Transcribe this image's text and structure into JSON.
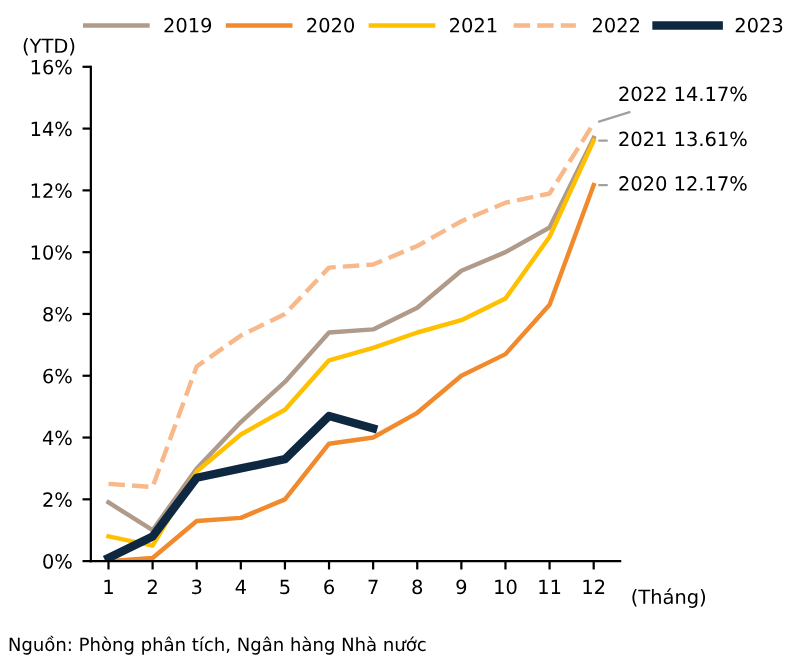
{
  "chart_data": {
    "type": "line",
    "ylabel": "(YTD)",
    "xlabel": "(Tháng)",
    "categories": [
      "1",
      "2",
      "3",
      "4",
      "5",
      "6",
      "7",
      "8",
      "9",
      "10",
      "11",
      "12"
    ],
    "series": [
      {
        "name": "2019",
        "color": "#b09a8a",
        "values": [
          1.9,
          1.0,
          3.0,
          4.5,
          5.8,
          7.4,
          7.5,
          8.2,
          9.4,
          10.0,
          10.8,
          13.7
        ]
      },
      {
        "name": "2020",
        "color": "#f08a2c",
        "values": [
          0.0,
          0.1,
          1.3,
          1.4,
          2.0,
          3.8,
          4.0,
          4.8,
          6.0,
          6.7,
          8.3,
          12.17
        ]
      },
      {
        "name": "2021",
        "color": "#ffc000",
        "values": [
          0.8,
          0.5,
          2.9,
          4.1,
          4.9,
          6.5,
          6.9,
          7.4,
          7.8,
          8.5,
          10.5,
          13.61
        ]
      },
      {
        "name": "2022",
        "color": "#f8b88a",
        "line_style": "dashed",
        "values": [
          2.5,
          2.4,
          6.3,
          7.3,
          8.0,
          9.5,
          9.6,
          10.2,
          11.0,
          11.6,
          11.9,
          14.17
        ]
      },
      {
        "name": "2023",
        "color": "#0e2841",
        "values": [
          0.1,
          0.8,
          2.7,
          3.0,
          3.3,
          4.7,
          4.3,
          null,
          null,
          null,
          null,
          null
        ]
      }
    ],
    "ylim": [
      0,
      16
    ],
    "yticks": [
      {
        "value": 0,
        "label": "0%"
      },
      {
        "value": 2,
        "label": "2%"
      },
      {
        "value": 4,
        "label": "4%"
      },
      {
        "value": 6,
        "label": "6%"
      },
      {
        "value": 8,
        "label": "8%"
      },
      {
        "value": 10,
        "label": "10%"
      },
      {
        "value": 12,
        "label": "12%"
      },
      {
        "value": 14,
        "label": "14%"
      },
      {
        "value": 16,
        "label": "16%"
      }
    ],
    "grid": false,
    "legend": "top",
    "marker": "none",
    "line_style": "solid",
    "annotations": [
      {
        "text": "2022 14.17%",
        "x": "12",
        "y": 14.17
      },
      {
        "text": "2021 13.61%",
        "x": "12",
        "y": 13.61
      },
      {
        "text": "2020 12.17%",
        "x": "12",
        "y": 12.17
      },
      "Nguồn: Phòng phân tích, Ngân hàng Nhà nước"
    ]
  }
}
